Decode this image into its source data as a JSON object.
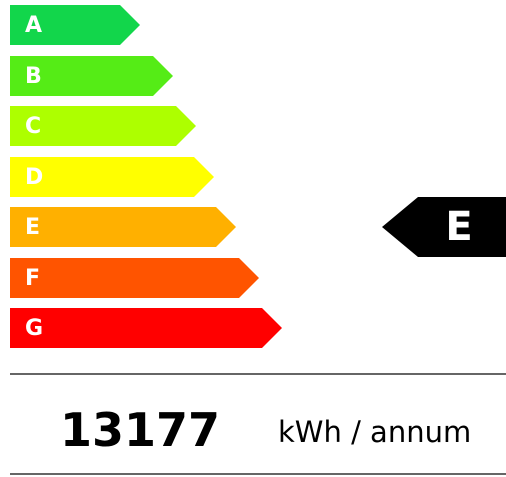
{
  "grades": [
    {
      "label": "A",
      "color": "#12d64b"
    },
    {
      "label": "B",
      "color": "#55ec16"
    },
    {
      "label": "C",
      "color": "#adff00"
    },
    {
      "label": "D",
      "color": "#ffff00"
    },
    {
      "label": "E",
      "color": "#ffb000"
    },
    {
      "label": "F",
      "color": "#ff5400"
    },
    {
      "label": "G",
      "color": "#ff0000"
    }
  ],
  "rating": "E",
  "consumption": {
    "value": 13177,
    "unit": "kWh / annum"
  }
}
